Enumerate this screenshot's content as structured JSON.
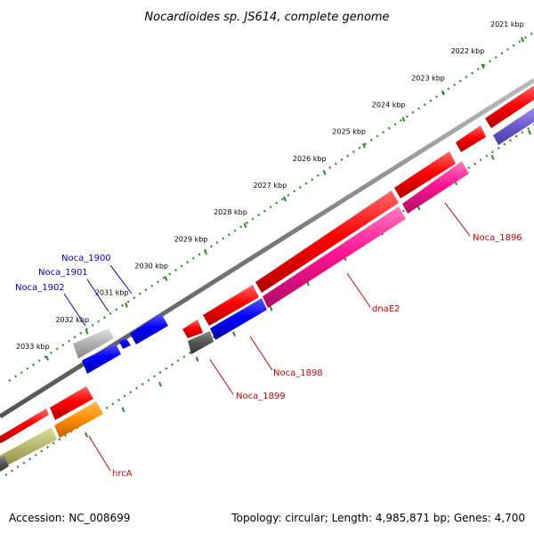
{
  "title": "Nocardioides sp. JS614, complete genome",
  "footer": {
    "accession": "Accession: NC_008699",
    "topology": "Topology: circular; Length: 4,985,871 bp; Genes: 4,700"
  },
  "ticks": [
    "2021 kbp",
    "2022 kbp",
    "2023 kbp",
    "2024 kbp",
    "2025 kbp",
    "2026 kbp",
    "2027 kbp",
    "2028 kbp",
    "2029 kbp",
    "2030 kbp",
    "2031 kbp",
    "2032 kbp",
    "2033 kbp"
  ],
  "colors": {
    "forward_cds": "#ff0000",
    "reverse_cds": "#ff1493",
    "blue_gene": "#0000ff",
    "grey_gene": "#999999",
    "dark_grey_gene": "#555555",
    "orange_gene": "#ff8c00",
    "olive_gene": "#b5b56a",
    "slate_gene": "#6a5acd",
    "backbone": "#808080",
    "tick_green": "#228b22",
    "label_red": "#cc0000",
    "label_blue": "#0000cc"
  },
  "gene_labels": [
    {
      "text": "Noca_1900",
      "color": "blue"
    },
    {
      "text": "Noca_1901",
      "color": "blue"
    },
    {
      "text": "Noca_1902",
      "color": "blue"
    },
    {
      "text": "Noca_1896",
      "color": "red"
    },
    {
      "text": "dnaE2",
      "color": "red"
    },
    {
      "text": "Noca_1898",
      "color": "red"
    },
    {
      "text": "Noca_1899",
      "color": "red"
    },
    {
      "text": "hrcA",
      "color": "red"
    }
  ]
}
